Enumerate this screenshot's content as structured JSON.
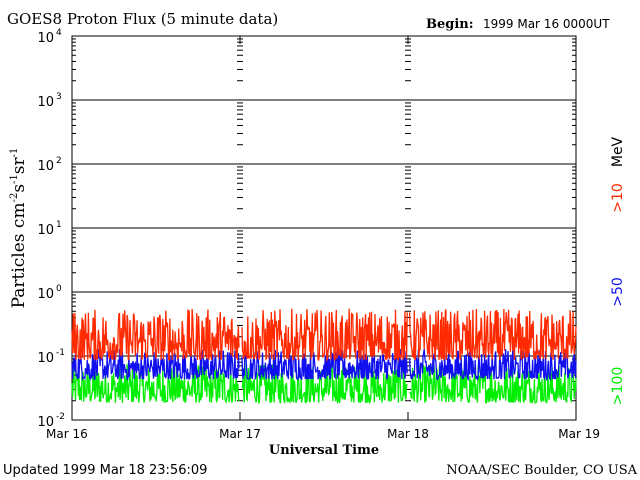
{
  "chart_data": {
    "type": "line",
    "title": "GOES8 Proton Flux (5 minute data)",
    "begin_label": "Begin:",
    "begin_value": "1999 Mar 16 0000UT",
    "xlabel": "Universal Time",
    "ylabel_main": "Particles cm",
    "ylabel_sup1": "-2",
    "ylabel_s": "s",
    "ylabel_sup2": "-1",
    "ylabel_sr": "sr",
    "ylabel_sup3": "-1",
    "yscale": "log",
    "ylim": [
      0.01,
      10000
    ],
    "xlim": [
      0,
      72
    ],
    "y_ticks": [
      {
        "base": "10",
        "exp": "-2",
        "value": 0.01
      },
      {
        "base": "10",
        "exp": "-1",
        "value": 0.1
      },
      {
        "base": "10",
        "exp": "0",
        "value": 1
      },
      {
        "base": "10",
        "exp": "1",
        "value": 10
      },
      {
        "base": "10",
        "exp": "2",
        "value": 100
      },
      {
        "base": "10",
        "exp": "3",
        "value": 1000
      },
      {
        "base": "10",
        "exp": "4",
        "value": 10000
      }
    ],
    "x_ticks": [
      {
        "label": "Mar 16",
        "hours": 0
      },
      {
        "label": "Mar 17",
        "hours": 24
      },
      {
        "label": "Mar 18",
        "hours": 48
      },
      {
        "label": "Mar 19",
        "hours": 72
      }
    ],
    "right_axis_unit": "MeV",
    "series": [
      {
        "name": ">10",
        "color": "#ff2a00",
        "baseline": 0.14,
        "peak": 0.55
      },
      {
        "name": ">50",
        "color": "#1010ee",
        "baseline": 0.07,
        "peak": 0.13
      },
      {
        "name": ">100",
        "color": "#00ee00",
        "baseline": 0.03,
        "peak": 0.075
      }
    ]
  },
  "footer": {
    "updated": "Updated 1999 Mar 18 23:56:09",
    "credit": "NOAA/SEC Boulder, CO USA"
  }
}
